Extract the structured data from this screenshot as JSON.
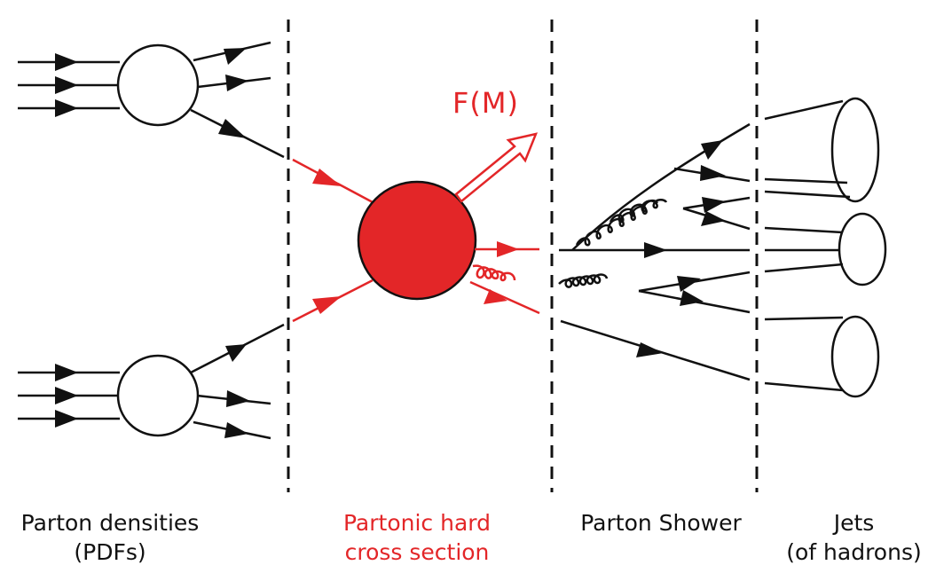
{
  "colors": {
    "ink": "#111111",
    "accent": "#e32628"
  },
  "hard_process": {
    "observable": "F(M)",
    "observable_symbol": "F",
    "observable_arg": "M"
  },
  "stages": [
    {
      "lines": [
        "Parton densities",
        "(PDFs)"
      ]
    },
    {
      "lines": [
        "Partonic hard",
        "cross section"
      ]
    },
    {
      "lines": [
        "Parton Shower"
      ]
    },
    {
      "lines": [
        "Jets",
        "(of hadrons)"
      ]
    }
  ]
}
